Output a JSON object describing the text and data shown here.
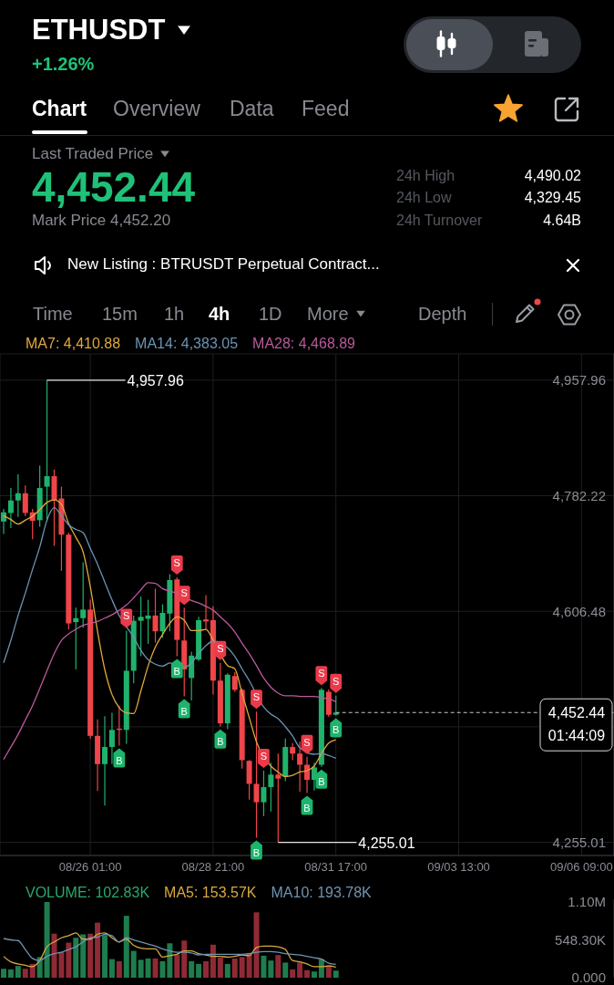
{
  "chart_data": [
    {
      "type": "other",
      "title": "ETHUSDT",
      "subtitle": "+1.26%",
      "annotations": [
        "Chart",
        "Overview",
        "Data",
        "Feed",
        "Last Traded Price",
        "4,452.44",
        "Mark Price 4,452.20",
        "24h High",
        "4,490.02",
        "24h Low",
        "4,329.45",
        "24h Turnover",
        "4.64B",
        "New Listing : BTRUSDT Perpetual Contract...",
        "Time",
        "15m",
        "1h",
        "4h",
        "1D",
        "More",
        "Depth"
      ]
    },
    {
      "type": "candlestick",
      "x": [
        "--08-24T01:00",
        "--08-24T05:00",
        "--08-24T09:00",
        "--08-24T13:00",
        "--08-24T17:00",
        "--08-24T21:00",
        "--08-25T01:00",
        "--08-25T05:00",
        "--08-25T09:00",
        "--08-25T13:00",
        "--08-25T17:00",
        "--08-25T21:00",
        "--08-26T01:00",
        "--08-26T05:00",
        "--08-26T09:00",
        "--08-26T13:00",
        "--08-26T17:00",
        "--08-26T21:00",
        "--08-27T01:00",
        "--08-27T05:00",
        "--08-27T09:00",
        "--08-27T13:00",
        "--08-27T17:00",
        "--08-27T21:00",
        "--08-28T01:00",
        "--08-28T05:00",
        "--08-28T09:00",
        "--08-28T13:00",
        "--08-28T17:00",
        "--08-28T21:00",
        "--08-29T01:00",
        "--08-29T05:00",
        "--08-29T09:00",
        "--08-29T13:00",
        "--08-29T17:00",
        "--08-29T21:00",
        "--08-30T01:00",
        "--08-30T05:00",
        "--08-30T09:00",
        "--08-30T13:00",
        "--08-30T17:00",
        "--08-30T21:00",
        "--08-31T01:00",
        "--08-31T05:00",
        "--08-31T09:00",
        "--08-31T13:00",
        "--08-31T17:00"
      ],
      "ohlc": [
        [
          4743,
          4762,
          4724,
          4757
        ],
        [
          4756,
          4794,
          4733,
          4775
        ],
        [
          4775,
          4815,
          4750,
          4786
        ],
        [
          4786,
          4798,
          4751,
          4756
        ],
        [
          4757,
          4762,
          4716,
          4744
        ],
        [
          4745,
          4828,
          4735,
          4794
        ],
        [
          4796,
          4957.96,
          4743,
          4812
        ],
        [
          4812,
          4822,
          4706,
          4776
        ],
        [
          4778,
          4796,
          4668,
          4723
        ],
        [
          4723,
          4726,
          4579,
          4588
        ],
        [
          4590,
          4612,
          4518,
          4596
        ],
        [
          4596,
          4681,
          4581,
          4609
        ],
        [
          4609,
          4624,
          4413,
          4417
        ],
        [
          4417,
          4442,
          4333,
          4374
        ],
        [
          4374,
          4447,
          4311,
          4400
        ],
        [
          4400,
          4452,
          4374,
          4426
        ],
        [
          4428,
          4463,
          4402,
          4426
        ],
        [
          4426,
          4577,
          4405,
          4516
        ],
        [
          4516,
          4600,
          4497,
          4592
        ],
        [
          4592,
          4629,
          4538,
          4598
        ],
        [
          4595,
          4624,
          4557,
          4600
        ],
        [
          4600,
          4641,
          4559,
          4576
        ],
        [
          4576,
          4617,
          4566,
          4604
        ],
        [
          4603,
          4663,
          4576,
          4654
        ],
        [
          4655,
          4658,
          4538,
          4563
        ],
        [
          4562,
          4612,
          4477,
          4518
        ],
        [
          4505,
          4545,
          4471,
          4539
        ],
        [
          4533,
          4598,
          4531,
          4593
        ],
        [
          4594,
          4631,
          4579,
          4591
        ],
        [
          4593,
          4614,
          4480,
          4501
        ],
        [
          4501,
          4528,
          4431,
          4436
        ],
        [
          4436,
          4512,
          4427,
          4510
        ],
        [
          4508,
          4514,
          4484,
          4487
        ],
        [
          4487,
          4489,
          4367,
          4380
        ],
        [
          4379,
          4380,
          4320,
          4344
        ],
        [
          4344,
          4454,
          4262,
          4316
        ],
        [
          4316,
          4364,
          4295,
          4339
        ],
        [
          4339,
          4376,
          4302,
          4358
        ],
        [
          4358,
          4390,
          4255.01,
          4352
        ],
        [
          4355,
          4413,
          4348,
          4400
        ],
        [
          4400,
          4406,
          4380,
          4390
        ],
        [
          4390,
          4408,
          4332,
          4373
        ],
        [
          4373,
          4385,
          4330,
          4350
        ],
        [
          4350,
          4376,
          4334,
          4369
        ],
        [
          4373,
          4490,
          4370,
          4487
        ],
        [
          4484,
          4488,
          4446,
          4449
        ],
        [
          4449,
          4478,
          4448,
          4452.44
        ]
      ],
      "colors": [
        "#20b26c",
        "#20b26c",
        "#20b26c",
        "#ef454a",
        "#ef454a",
        "#20b26c",
        "#20b26c",
        "#ef454a",
        "#ef454a",
        "#ef454a",
        "#20b26c",
        "#20b26c",
        "#ef454a",
        "#ef454a",
        "#20b26c",
        "#20b26c",
        "#ef454a",
        "#20b26c",
        "#20b26c",
        "#20b26c",
        "#20b26c",
        "#ef454a",
        "#20b26c",
        "#20b26c",
        "#ef454a",
        "#ef454a",
        "#20b26c",
        "#20b26c",
        "#ef454a",
        "#ef454a",
        "#ef454a",
        "#20b26c",
        "#ef454a",
        "#ef454a",
        "#ef454a",
        "#ef454a",
        "#20b26c",
        "#20b26c",
        "#ef454a",
        "#20b26c",
        "#ef454a",
        "#ef454a",
        "#ef454a",
        "#20b26c",
        "#20b26c",
        "#ef454a",
        "#20b26c"
      ],
      "series": [
        {
          "type": "line",
          "name": "MA7: 4,410.88",
          "color": "#e0a83c",
          "values": [
            4752,
            4746,
            4739,
            4745,
            4751,
            4761,
            4772,
            4776,
            4769,
            4740,
            4719,
            4697,
            4644,
            4576,
            4518,
            4480,
            4460,
            4452,
            4451,
            4485,
            4523,
            4552,
            4571,
            4588,
            4598,
            4593,
            4577,
            4577,
            4579,
            4563,
            null,
            4524,
            4519,
            4482,
            4445,
            4408,
            null,
            4371,
            4362,
            4355,
            4357,
            4362,
            4364,
            4371,
            4390,
            4406,
            4410.88
          ]
        },
        {
          "type": "line",
          "name": "MA14: 4,383.05",
          "color": "#6c93b3",
          "values": [
            4528,
            4562,
            4600,
            4634,
            4670,
            4704,
            4745,
            4764,
            4752,
            4738,
            4731,
            4726,
            4702,
            4678,
            4651,
            4624,
            4600,
            4583,
            4567,
            4547,
            4533,
            4526,
            4523,
            4528,
            null,
            4521,
            4528,
            4542,
            4554,
            4561,
            null,
            4551,
            4538,
            4519,
            4501,
            null,
            4461,
            4450,
            4443,
            4431,
            4417,
            4399,
            null,
            4389,
            4390,
            4387,
            4383.05
          ]
        },
        {
          "type": "line",
          "name": "MA28: 4,468.89",
          "color": "#b95a9c",
          "values": [
            4381,
            4400,
            4419,
            4441,
            4463,
            4489,
            4516,
            4542,
            4562,
            4572,
            4579,
            4585,
            4588,
            4591,
            4596,
            4601,
            4608,
            4616,
            4627,
            4639,
            4650,
            4649,
            4641,
            4637,
            4634,
            4629,
            4623,
            4619,
            4614,
            4608,
            4598,
            4588,
            4575,
            4558,
            4542,
            4524,
            4505,
            4491,
            4482,
            4478,
            4478,
            4477,
            4477,
            4477,
            4475,
            4473,
            4468.89
          ]
        }
      ],
      "xlim": [
        "--08-23T23:00",
        "--09-07T03:00"
      ],
      "xticks": [
        {
          "value": "--08-26T01:00",
          "label": "08/26 01:00"
        },
        {
          "value": "--08-28T21:00",
          "label": "08/28 21:00"
        },
        {
          "value": "--08-31T17:00",
          "label": "08/31 17:00"
        },
        {
          "value": "--09-03T13:00",
          "label": "09/03 13:00"
        },
        {
          "value": "--09-06T09:00",
          "label": "09/06 09:00"
        }
      ],
      "ylim": [
        4235,
        4998
      ],
      "yticks": [
        {
          "value": 4957.96,
          "label": "4,957.96"
        },
        {
          "value": 4782.22,
          "label": "4,782.22"
        },
        {
          "value": 4606.48,
          "label": "4,606.48"
        },
        {
          "value": 4430.74,
          "label": null
        },
        {
          "value": 4255.01,
          "label": "4,255.01"
        }
      ],
      "grid": true,
      "legend": "top left",
      "ref_lines": [
        {
          "axis": "y",
          "value": 4452.44,
          "label": "4,452.44",
          "line_style": "dashed",
          "color": "#c8c8c8"
        }
      ],
      "annotations": [
        {
          "text": "4,957.96",
          "x": "--08-25T01:00",
          "y": 4957.96
        },
        {
          "text": "4,255.01",
          "x": "--08-30T09:00",
          "y": 4255.01
        },
        "01:44:09",
        {
          "text": "S",
          "x": "--08-26T21:00",
          "y": 4577
        },
        {
          "text": "B",
          "x": "--08-26T17:00",
          "y": 4402
        },
        {
          "text": "S",
          "x": "--08-28T01:00",
          "y": 4658
        },
        {
          "text": "B",
          "x": "--08-28T01:00",
          "y": 4538
        },
        {
          "text": "S",
          "x": "--08-28T05:00",
          "y": 4612
        },
        {
          "text": "B",
          "x": "--08-28T05:00",
          "y": 4477
        },
        {
          "text": "S",
          "x": "--08-29T01:00",
          "y": 4528
        },
        {
          "text": "B",
          "x": "--08-29T01:00",
          "y": 4431
        },
        {
          "text": "S",
          "x": "--08-29T21:00",
          "y": 4454
        },
        {
          "text": "B",
          "x": "--08-29T21:00",
          "y": 4262
        },
        {
          "text": "S",
          "x": "--08-30T01:00",
          "y": 4364
        },
        {
          "text": "S",
          "x": "--08-31T01:00",
          "y": 4385
        },
        {
          "text": "B",
          "x": "--08-31T01:00",
          "y": 4330
        },
        {
          "text": "S",
          "x": "--08-31T09:00",
          "y": 4490
        },
        {
          "text": "B",
          "x": "--08-31T09:00",
          "y": 4370
        },
        {
          "text": "S",
          "x": "--08-31T17:00",
          "y": 4478
        },
        {
          "text": "B",
          "x": "--08-31T17:00",
          "y": 4448
        }
      ]
    },
    {
      "type": "bar",
      "x": [
        "--08-24T01:00",
        "--08-24T05:00",
        "--08-24T09:00",
        "--08-24T13:00",
        "--08-24T17:00",
        "--08-24T21:00",
        "--08-25T01:00",
        "--08-25T05:00",
        "--08-25T09:00",
        "--08-25T13:00",
        "--08-25T17:00",
        "--08-25T21:00",
        "--08-26T01:00",
        "--08-26T05:00",
        "--08-26T09:00",
        "--08-26T13:00",
        "--08-26T17:00",
        "--08-26T21:00",
        "--08-27T01:00",
        "--08-27T05:00",
        "--08-27T09:00",
        "--08-27T13:00",
        "--08-27T17:00",
        "--08-27T21:00",
        "--08-28T01:00",
        "--08-28T05:00",
        "--08-28T09:00",
        "--08-28T13:00",
        "--08-28T17:00",
        "--08-28T21:00",
        "--08-29T01:00",
        "--08-29T05:00",
        "--08-29T09:00",
        "--08-29T13:00",
        "--08-29T17:00",
        "--08-29T21:00",
        "--08-30T01:00",
        "--08-30T05:00",
        "--08-30T09:00",
        "--08-30T13:00",
        "--08-30T17:00",
        "--08-30T21:00",
        "--08-31T01:00",
        "--08-31T05:00",
        "--08-31T09:00",
        "--08-31T13:00",
        "--08-31T17:00"
      ],
      "series": [
        {
          "name": "VOLUME: 102.83K",
          "color": "#2aa86b",
          "colors": [
            "#1e7d4d",
            "#1e7d4d",
            "#1e7d4d",
            "#8f2a35",
            "#8f2a35",
            "#1e7d4d",
            "#1e7d4d",
            "#8f2a35",
            "#8f2a35",
            "#8f2a35",
            "#1e7d4d",
            "#1e7d4d",
            "#8f2a35",
            "#8f2a35",
            "#1e7d4d",
            "#1e7d4d",
            "#8f2a35",
            "#1e7d4d",
            "#1e7d4d",
            "#1e7d4d",
            "#1e7d4d",
            "#8f2a35",
            "#1e7d4d",
            "#1e7d4d",
            "#8f2a35",
            "#8f2a35",
            "#1e7d4d",
            "#1e7d4d",
            "#8f2a35",
            "#8f2a35",
            "#8f2a35",
            "#1e7d4d",
            "#8f2a35",
            "#8f2a35",
            "#8f2a35",
            "#8f2a35",
            "#1e7d4d",
            "#1e7d4d",
            "#8f2a35",
            "#1e7d4d",
            "#8f2a35",
            "#8f2a35",
            "#8f2a35",
            "#1e7d4d",
            "#1e7d4d",
            "#8f2a35",
            "#1e7d4d"
          ],
          "values": [
            130000,
            120000,
            170000,
            130000,
            200000,
            300000,
            1100000,
            640000,
            370000,
            510000,
            580000,
            630000,
            640000,
            800000,
            620000,
            270000,
            240000,
            900000,
            390000,
            260000,
            280000,
            280000,
            240000,
            500000,
            330000,
            540000,
            240000,
            200000,
            240000,
            480000,
            290000,
            200000,
            280000,
            300000,
            360000,
            950000,
            320000,
            250000,
            330000,
            220000,
            120000,
            220000,
            110000,
            90000,
            270000,
            180000,
            102830
          ]
        },
        {
          "type": "line",
          "name": "MA5: 153.57K",
          "color": "#d9a83f",
          "values": [
            310000,
            230000,
            200000,
            180000,
            160000,
            250000,
            450000,
            520000,
            580000,
            610000,
            650000,
            560000,
            560000,
            630000,
            650000,
            580000,
            520000,
            560000,
            470000,
            430000,
            420000,
            420000,
            300000,
            320000,
            340000,
            390000,
            390000,
            350000,
            330000,
            310000,
            310000,
            300000,
            310000,
            330000,
            320000,
            440000,
            460000,
            460000,
            450000,
            410000,
            250000,
            230000,
            200000,
            160000,
            160000,
            170000,
            153570
          ]
        },
        {
          "type": "line",
          "name": "MA10: 193.78K",
          "color": "#6f93b0",
          "values": [
            570000,
            550000,
            540000,
            410000,
            280000,
            250000,
            310000,
            350000,
            370000,
            410000,
            450000,
            520000,
            580000,
            590000,
            630000,
            610000,
            520000,
            580000,
            550000,
            520000,
            490000,
            460000,
            420000,
            390000,
            370000,
            370000,
            360000,
            330000,
            340000,
            340000,
            340000,
            340000,
            340000,
            340000,
            350000,
            370000,
            380000,
            380000,
            370000,
            350000,
            340000,
            330000,
            310000,
            290000,
            270000,
            210000,
            193780
          ]
        }
      ],
      "xlim": [
        "--08-23T23:00",
        "--09-07T03:00"
      ],
      "ylim": [
        0,
        1140000
      ],
      "yticks": [
        {
          "value": 0,
          "label": "0.000"
        },
        {
          "value": 548300,
          "label": "548.30K"
        },
        {
          "value": 1100000,
          "label": "1.10M"
        }
      ],
      "tick_labels": "y",
      "legend": "top left"
    }
  ]
}
